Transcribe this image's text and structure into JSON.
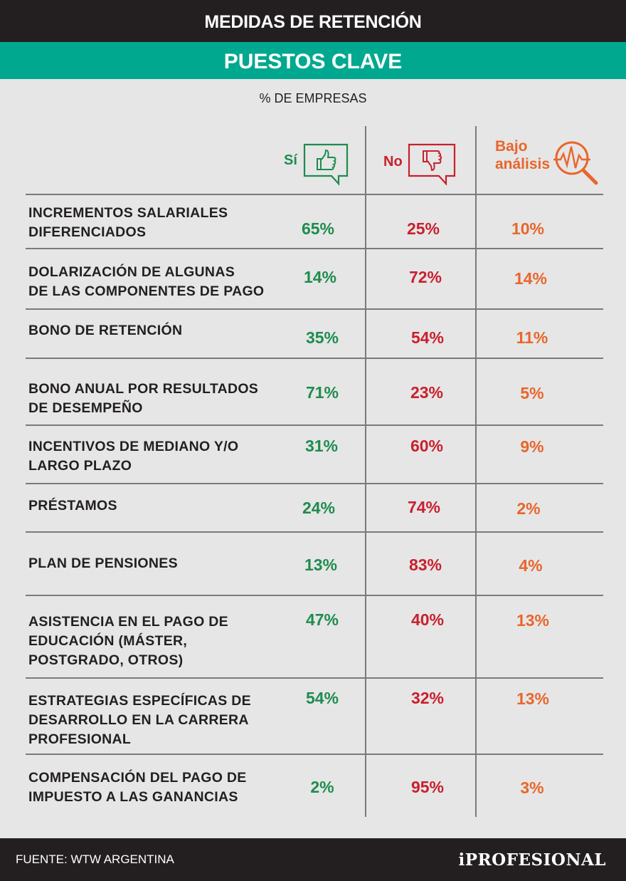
{
  "header": {
    "title": "MEDIDAS DE RETENCIÓN",
    "subtitle": "PUESTOS CLAVE",
    "unit_label": "% DE EMPRESAS"
  },
  "columns": {
    "yes": "Sí",
    "no": "No",
    "low_line1": "Bajo",
    "low_line2": "análisis"
  },
  "colors": {
    "yes": "#1e8c4e",
    "no": "#c8202e",
    "low": "#e8662c",
    "accent": "#00a88f"
  },
  "chart_data": {
    "type": "table",
    "title": "MEDIDAS DE RETENCIÓN - PUESTOS CLAVE",
    "unit": "% DE EMPRESAS",
    "columns": [
      "Sí",
      "No",
      "Bajo análisis"
    ],
    "rows": [
      {
        "lines": [
          "INCREMENTOS SALARIALES",
          "DIFERENCIADOS"
        ],
        "yes": "65%",
        "no": "25%",
        "low": "10%"
      },
      {
        "lines": [
          "DOLARIZACIÓN DE ALGUNAS",
          "DE LAS COMPONENTES DE PAGO"
        ],
        "yes": "14%",
        "no": "72%",
        "low": "14%"
      },
      {
        "lines": [
          "BONO DE RETENCIÓN"
        ],
        "yes": "35%",
        "no": "54%",
        "low": "11%"
      },
      {
        "lines": [
          "BONO ANUAL POR RESULTADOS",
          "DE DESEMPEÑO"
        ],
        "yes": "71%",
        "no": "23%",
        "low": "5%"
      },
      {
        "lines": [
          "INCENTIVOS DE MEDIANO Y/O",
          "LARGO PLAZO"
        ],
        "yes": "31%",
        "no": "60%",
        "low": "9%"
      },
      {
        "lines": [
          "PRÉSTAMOS"
        ],
        "yes": "24%",
        "no": "74%",
        "low": "2%"
      },
      {
        "lines": [
          "PLAN DE PENSIONES"
        ],
        "yes": "13%",
        "no": "83%",
        "low": "4%"
      },
      {
        "lines": [
          "ASISTENCIA EN EL PAGO DE",
          "EDUCACIÓN (MÁSTER,",
          "POSTGRADO, OTROS)"
        ],
        "yes": "47%",
        "no": "40%",
        "low": "13%"
      },
      {
        "lines": [
          "ESTRATEGIAS ESPECÍFICAS DE",
          "DESARROLLO EN LA CARRERA",
          "PROFESIONAL"
        ],
        "yes": "54%",
        "no": "32%",
        "low": "13%"
      },
      {
        "lines": [
          "COMPENSACIÓN DEL PAGO DE",
          "IMPUESTO A LAS GANANCIAS"
        ],
        "yes": "2%",
        "no": "95%",
        "low": "3%"
      }
    ]
  },
  "footer": {
    "source": "FUENTE: WTW ARGENTINA",
    "brand": "iPROFESIONAL"
  }
}
